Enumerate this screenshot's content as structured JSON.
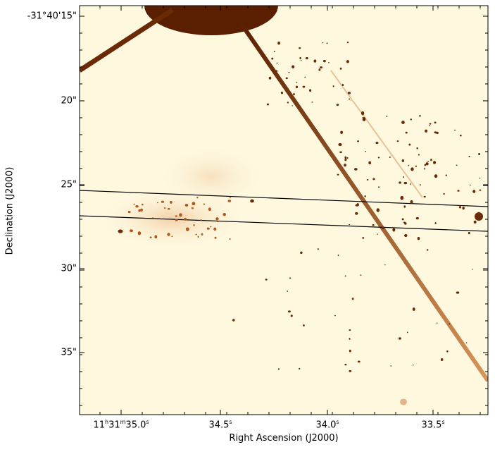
{
  "colors": {
    "background": "#fef8df",
    "dark": "#5a1f00",
    "mid": "#a24a10",
    "spot": "#6b2a06"
  },
  "axes": {
    "xlabel": "Right Ascension (J2000)",
    "ylabel": "Declination (J2000)",
    "xticks": [
      {
        "h": "11",
        "hs": "h",
        "m": "31",
        "ms": "m",
        "s": "35.0",
        "ss": "s"
      },
      {
        "s": "34.5",
        "ss": "s"
      },
      {
        "s": "34.0",
        "ss": "s"
      },
      {
        "s": "33.5",
        "ss": "s"
      }
    ],
    "yticks": [
      "-31°40'15\"",
      "20\"",
      "25\"",
      "30\"",
      "35\""
    ]
  }
}
